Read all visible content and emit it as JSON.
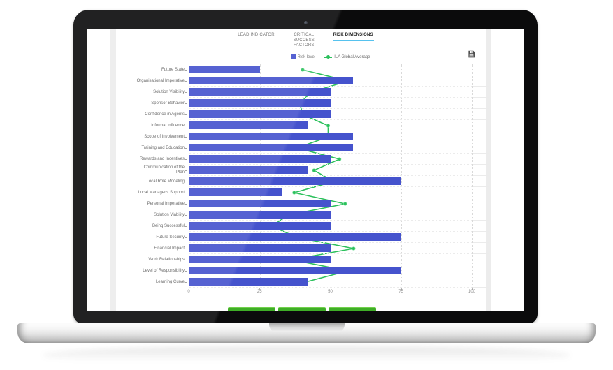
{
  "window": {
    "tabs": [
      {
        "label": "LEAD INDICATOR",
        "active": false
      },
      {
        "label": "CRITICAL SUCCESS FACTORS",
        "active": false
      },
      {
        "label": "RISK DIMENSIONS",
        "active": true
      }
    ],
    "active_tab_underline_color": "#56c2ee"
  },
  "legend": {
    "items": [
      {
        "label": "Risk level",
        "color": "#4553cd",
        "marker": "box"
      },
      {
        "label": "ILA Global Average",
        "color": "#2cc05c",
        "marker": "line-point"
      }
    ]
  },
  "toolbar": {
    "save_icon": "floppy-disk"
  },
  "chart_data": {
    "type": "bar",
    "orientation": "horizontal",
    "title": "",
    "xlabel": "",
    "ylabel": "",
    "xlim": [
      0,
      100
    ],
    "x_ticks": [
      "0",
      "25",
      "50",
      "75",
      "100"
    ],
    "grid": "dotted",
    "legend_position": "top-center",
    "categories": [
      "Future State",
      "Organisational Imperative",
      "Solution Visibility",
      "Sponsor Behavior",
      "Confidence in Agents",
      "Informal Influence",
      "Scope of Involvement",
      "Training and Education",
      "Rewards and Incentives",
      "Communication of the\nPlan",
      "Local Role Modeling",
      "Local Manager's Support",
      "Personal Imperative",
      "Solution Viability",
      "Being Successful",
      "Future Security",
      "Financial Impact",
      "Work Relationships",
      "Level of Responsibility",
      "Learning Curve"
    ],
    "series": [
      {
        "name": "Risk level",
        "render": "bar",
        "color": "#4553cd",
        "values": [
          25,
          58,
          50,
          50,
          50,
          42,
          58,
          58,
          50,
          42,
          75,
          33,
          50,
          50,
          50,
          75,
          50,
          50,
          75,
          42
        ]
      },
      {
        "name": "ILA Global Average",
        "render": "line",
        "color": "#2cc05c",
        "values": [
          40,
          56,
          43,
          39,
          40,
          49,
          49,
          38,
          53,
          44,
          51,
          37,
          55,
          35,
          29,
          38,
          58,
          36,
          56,
          41
        ]
      }
    ]
  },
  "footer": {
    "button_count": 3,
    "button_color": "#3fae27",
    "button_labels": [
      "",
      "",
      ""
    ]
  }
}
